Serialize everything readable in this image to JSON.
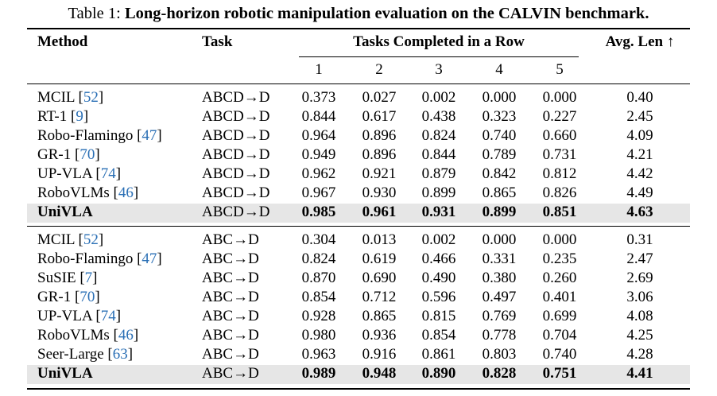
{
  "caption": {
    "label": "Table 1:",
    "text": "Long-horizon robotic manipulation evaluation on the CALVIN benchmark."
  },
  "header": {
    "method": "Method",
    "task": "Task",
    "group": "Tasks Completed in a Row",
    "avg": "Avg. Len ↑",
    "subcols": [
      "1",
      "2",
      "3",
      "4",
      "5"
    ]
  },
  "sections": [
    {
      "rows": [
        {
          "method": "MCIL",
          "ref": "52",
          "task": "ABCD→D",
          "vals": [
            "0.373",
            "0.027",
            "0.002",
            "0.000",
            "0.000"
          ],
          "avg": "0.40",
          "highlight": false
        },
        {
          "method": "RT-1",
          "ref": "9",
          "task": "ABCD→D",
          "vals": [
            "0.844",
            "0.617",
            "0.438",
            "0.323",
            "0.227"
          ],
          "avg": "2.45",
          "highlight": false
        },
        {
          "method": "Robo-Flamingo",
          "ref": "47",
          "task": "ABCD→D",
          "vals": [
            "0.964",
            "0.896",
            "0.824",
            "0.740",
            "0.660"
          ],
          "avg": "4.09",
          "highlight": false
        },
        {
          "method": "GR-1",
          "ref": "70",
          "task": "ABCD→D",
          "vals": [
            "0.949",
            "0.896",
            "0.844",
            "0.789",
            "0.731"
          ],
          "avg": "4.21",
          "highlight": false
        },
        {
          "method": "UP-VLA",
          "ref": "74",
          "task": "ABCD→D",
          "vals": [
            "0.962",
            "0.921",
            "0.879",
            "0.842",
            "0.812"
          ],
          "avg": "4.42",
          "highlight": false
        },
        {
          "method": "RoboVLMs",
          "ref": "46",
          "task": "ABCD→D",
          "vals": [
            "0.967",
            "0.930",
            "0.899",
            "0.865",
            "0.826"
          ],
          "avg": "4.49",
          "highlight": false
        },
        {
          "method": "UniVLA",
          "ref": "",
          "task": "ABCD→D",
          "vals": [
            "0.985",
            "0.961",
            "0.931",
            "0.899",
            "0.851"
          ],
          "avg": "4.63",
          "highlight": true
        }
      ]
    },
    {
      "rows": [
        {
          "method": "MCIL",
          "ref": "52",
          "task": "ABC→D",
          "vals": [
            "0.304",
            "0.013",
            "0.002",
            "0.000",
            "0.000"
          ],
          "avg": "0.31",
          "highlight": false
        },
        {
          "method": "Robo-Flamingo",
          "ref": "47",
          "task": "ABC→D",
          "vals": [
            "0.824",
            "0.619",
            "0.466",
            "0.331",
            "0.235"
          ],
          "avg": "2.47",
          "highlight": false
        },
        {
          "method": "SuSIE",
          "ref": "7",
          "task": "ABC→D",
          "vals": [
            "0.870",
            "0.690",
            "0.490",
            "0.380",
            "0.260"
          ],
          "avg": "2.69",
          "highlight": false
        },
        {
          "method": "GR-1",
          "ref": "70",
          "task": "ABC→D",
          "vals": [
            "0.854",
            "0.712",
            "0.596",
            "0.497",
            "0.401"
          ],
          "avg": "3.06",
          "highlight": false
        },
        {
          "method": "UP-VLA",
          "ref": "74",
          "task": "ABC→D",
          "vals": [
            "0.928",
            "0.865",
            "0.815",
            "0.769",
            "0.699"
          ],
          "avg": "4.08",
          "highlight": false
        },
        {
          "method": "RoboVLMs",
          "ref": "46",
          "task": "ABC→D",
          "vals": [
            "0.980",
            "0.936",
            "0.854",
            "0.778",
            "0.704"
          ],
          "avg": "4.25",
          "highlight": false
        },
        {
          "method": "Seer-Large",
          "ref": "63",
          "task": "ABC→D",
          "vals": [
            "0.963",
            "0.916",
            "0.861",
            "0.803",
            "0.740"
          ],
          "avg": "4.28",
          "highlight": false
        },
        {
          "method": "UniVLA",
          "ref": "",
          "task": "ABC→D",
          "vals": [
            "0.989",
            "0.948",
            "0.890",
            "0.828",
            "0.751"
          ],
          "avg": "4.41",
          "highlight": true
        }
      ]
    }
  ]
}
